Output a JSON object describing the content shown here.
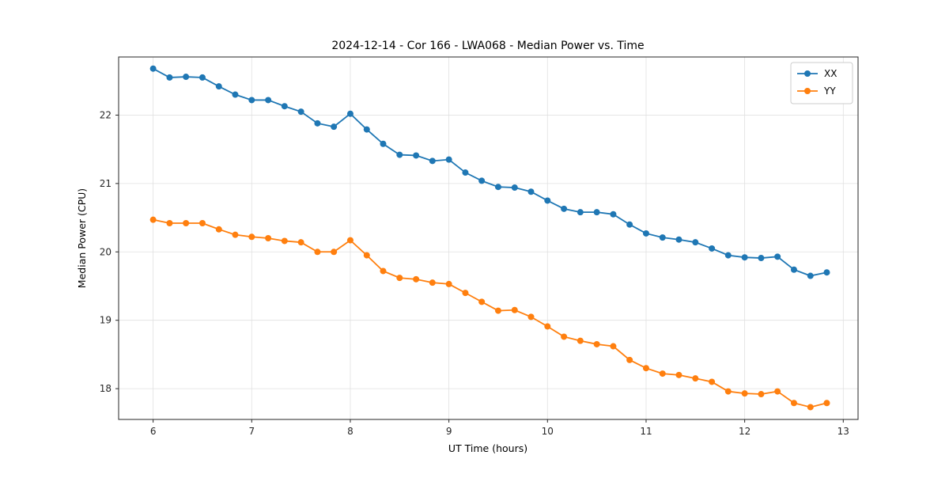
{
  "chart_data": {
    "type": "line",
    "title": "2024-12-14 - Cor 166 - LWA068 - Median Power vs. Time",
    "xlabel": "UT Time (hours)",
    "ylabel": "Median Power (CPU)",
    "xlim": [
      5.65,
      13.15
    ],
    "ylim": [
      17.55,
      22.85
    ],
    "xticks": [
      6,
      7,
      8,
      9,
      10,
      11,
      12,
      13
    ],
    "yticks": [
      18,
      19,
      20,
      21,
      22
    ],
    "grid": true,
    "legend_position": "upper right",
    "marker": "circle",
    "x": [
      6.0,
      6.167,
      6.333,
      6.5,
      6.667,
      6.833,
      7.0,
      7.167,
      7.333,
      7.5,
      7.667,
      7.833,
      8.0,
      8.167,
      8.333,
      8.5,
      8.667,
      8.833,
      9.0,
      9.167,
      9.333,
      9.5,
      9.667,
      9.833,
      10.0,
      10.167,
      10.333,
      10.5,
      10.667,
      10.833,
      11.0,
      11.167,
      11.333,
      11.5,
      11.667,
      11.833,
      12.0,
      12.167,
      12.333,
      12.5,
      12.667,
      12.833
    ],
    "series": [
      {
        "name": "XX",
        "color": "#1f77b4",
        "values": [
          22.68,
          22.55,
          22.56,
          22.55,
          22.42,
          22.3,
          22.22,
          22.22,
          22.13,
          22.05,
          21.88,
          21.83,
          22.02,
          21.79,
          21.58,
          21.42,
          21.41,
          21.33,
          21.35,
          21.16,
          21.04,
          20.95,
          20.94,
          20.88,
          20.75,
          20.63,
          20.58,
          20.58,
          20.55,
          20.4,
          20.27,
          20.21,
          20.18,
          20.14,
          20.05,
          19.95,
          19.92,
          19.91,
          19.93,
          19.74,
          19.65,
          19.7
        ]
      },
      {
        "name": "YY",
        "color": "#ff7f0e",
        "values": [
          20.47,
          20.42,
          20.42,
          20.42,
          20.33,
          20.25,
          20.22,
          20.2,
          20.16,
          20.14,
          20.0,
          20.0,
          20.17,
          19.95,
          19.72,
          19.62,
          19.6,
          19.55,
          19.53,
          19.4,
          19.27,
          19.14,
          19.15,
          19.05,
          18.91,
          18.76,
          18.7,
          18.65,
          18.62,
          18.42,
          18.3,
          18.22,
          18.2,
          18.15,
          18.1,
          17.96,
          17.93,
          17.92,
          17.96,
          17.79,
          17.73,
          17.79
        ]
      }
    ]
  }
}
